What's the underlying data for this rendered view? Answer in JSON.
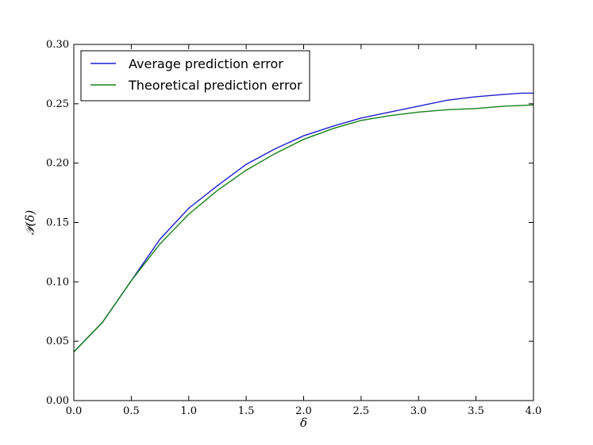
{
  "chart_data": {
    "type": "line",
    "xlabel": "δ",
    "ylabel": "𝒫(δ)",
    "xlim": [
      0.0,
      4.0
    ],
    "ylim": [
      0.0,
      0.3
    ],
    "xticks": [
      "0.0",
      "0.5",
      "1.0",
      "1.5",
      "2.0",
      "2.5",
      "3.0",
      "3.5",
      "4.0"
    ],
    "yticks": [
      "0.00",
      "0.05",
      "0.10",
      "0.15",
      "0.20",
      "0.25",
      "0.30"
    ],
    "legend_position": "upper-left",
    "grid": false,
    "series": [
      {
        "name": "Average prediction error",
        "color": "#1f1fd0",
        "x": [
          0.0,
          0.25,
          0.5,
          0.75,
          1.0,
          1.25,
          1.5,
          1.75,
          2.0,
          2.25,
          2.5,
          2.75,
          3.0,
          3.25,
          3.5,
          3.75,
          3.9,
          4.0
        ],
        "y": [
          0.041,
          0.066,
          0.101,
          0.136,
          0.162,
          0.181,
          0.199,
          0.212,
          0.223,
          0.231,
          0.238,
          0.243,
          0.248,
          0.253,
          0.256,
          0.258,
          0.259,
          0.259
        ]
      },
      {
        "name": "Theoretical prediction error",
        "color": "#178017",
        "x": [
          0.0,
          0.25,
          0.5,
          0.75,
          1.0,
          1.25,
          1.5,
          1.75,
          2.0,
          2.25,
          2.5,
          2.75,
          3.0,
          3.25,
          3.5,
          3.75,
          4.0
        ],
        "y": [
          0.041,
          0.066,
          0.101,
          0.132,
          0.157,
          0.177,
          0.194,
          0.208,
          0.22,
          0.229,
          0.236,
          0.24,
          0.243,
          0.245,
          0.246,
          0.248,
          0.249
        ]
      }
    ]
  }
}
